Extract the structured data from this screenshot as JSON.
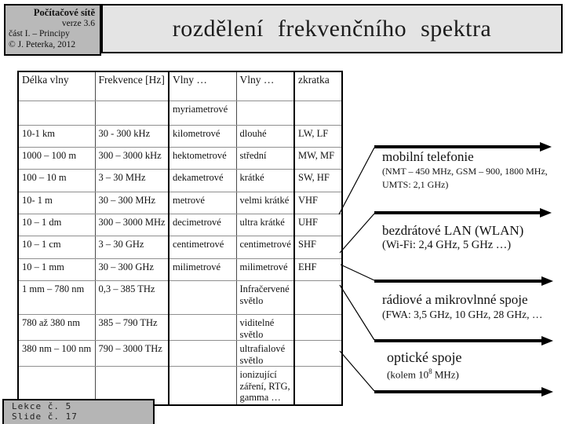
{
  "header": {
    "brand": {
      "line1": "Počítačové sítě",
      "line2": "verze 3.6",
      "line3": "část I.  –  Principy",
      "line4": "© J. Peterka, 2012"
    },
    "title": "rozdělení frekvenčního spektra"
  },
  "table": {
    "headers": [
      "Délka vlny",
      "Frekvence [Hz]",
      "Vlny …",
      "Vlny …",
      "zkratka"
    ],
    "rows": [
      [
        "",
        "",
        "myriametrové",
        "",
        ""
      ],
      [
        "10-1 km",
        "30 - 300 kHz",
        "kilometrové",
        "dlouhé",
        "LW, LF"
      ],
      [
        "1000 – 100 m",
        "300 – 3000 kHz",
        "hektometrové",
        "střední",
        "MW, MF"
      ],
      [
        "100 – 10 m",
        "3 – 30 MHz",
        "dekametrové",
        "krátké",
        "SW, HF"
      ],
      [
        "10- 1 m",
        "30 – 300 MHz",
        "metrové",
        "velmi krátké",
        "VHF"
      ],
      [
        "10 – 1 dm",
        "300 – 3000 MHz",
        "decimetrové",
        "ultra krátké",
        "UHF"
      ],
      [
        "10 – 1 cm",
        "3 – 30 GHz",
        "centimetrové",
        "centimetrové",
        "SHF"
      ],
      [
        "10 – 1 mm",
        "30 – 300 GHz",
        "milimetrové",
        "milimetrové",
        "EHF"
      ],
      [
        "1 mm – 780 nm",
        "0,3 – 385 THz",
        "",
        "Infračervené světlo",
        ""
      ],
      [
        "780 až 380 nm",
        "385 – 790 THz",
        "",
        "viditelné světlo",
        ""
      ],
      [
        "380 nm – 100 nm",
        "790 – 3000 THz",
        "",
        "ultrafialové světlo",
        ""
      ],
      [
        "",
        "",
        "",
        "ionizující záření, RTG, gamma …",
        ""
      ]
    ]
  },
  "annotations": [
    {
      "title": "mobilní telefonie",
      "details": [
        "(NMT – 450 MHz, GSM – 900, 1800 MHz,",
        " UMTS: 2,1 GHz)"
      ]
    },
    {
      "title": "bezdrátové LAN (WLAN)",
      "details": [
        "(Wi-Fi:  2,4 GHz,  5 GHz  …)"
      ]
    },
    {
      "title": "rádiové a mikrovlnné spoje",
      "details": [
        "(FWA:  3,5 GHz,  10 GHz,  28 GHz,  …"
      ]
    },
    {
      "title": "optické spoje",
      "detail_prefix": "(kolem 10",
      "detail_sup": "8",
      "detail_suffix": " MHz)"
    }
  ],
  "footer": {
    "line1": "Lekce č. 5",
    "line2": "Slide č. 17"
  },
  "colors": {
    "brand_bg": "#b9b9b9",
    "title_bg": "#e4e4e4",
    "footer_bg": "#b5b5b5",
    "border": "#000000"
  }
}
